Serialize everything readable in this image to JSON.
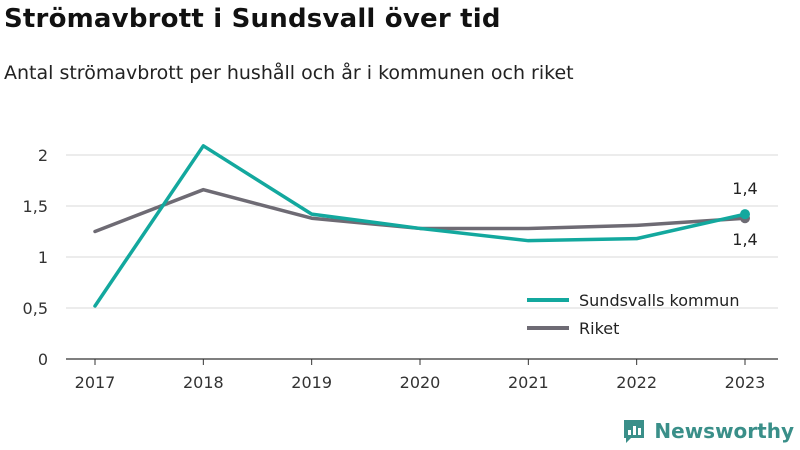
{
  "title": "Strömavbrott i Sundsvall över tid",
  "subtitle": "Antal strömavbrott per hushåll och år i kommunen och riket",
  "brand": {
    "name": "Newsworthy",
    "icon": "newsworthy-logo-icon",
    "color": "#3a8f89"
  },
  "chart_data": {
    "type": "line",
    "categories": [
      "2017",
      "2018",
      "2019",
      "2020",
      "2021",
      "2022",
      "2023"
    ],
    "ylim": [
      0,
      2
    ],
    "yticks": [
      0,
      0.5,
      1,
      1.5,
      2
    ],
    "ytick_labels": [
      "0",
      "0,5",
      "1",
      "1,5",
      "2"
    ],
    "grid": true,
    "legend_position": "bottom-right",
    "series": [
      {
        "name": "Sundsvalls kommun",
        "color": "#13a89e",
        "values": [
          0.52,
          2.09,
          1.42,
          1.28,
          1.16,
          1.18,
          1.42
        ],
        "end_label": "1,4",
        "end_label_position": "above"
      },
      {
        "name": "Riket",
        "color": "#6e6b74",
        "values": [
          1.25,
          1.66,
          1.38,
          1.28,
          1.28,
          1.31,
          1.38
        ],
        "end_label": "1,4",
        "end_label_position": "below"
      }
    ]
  }
}
